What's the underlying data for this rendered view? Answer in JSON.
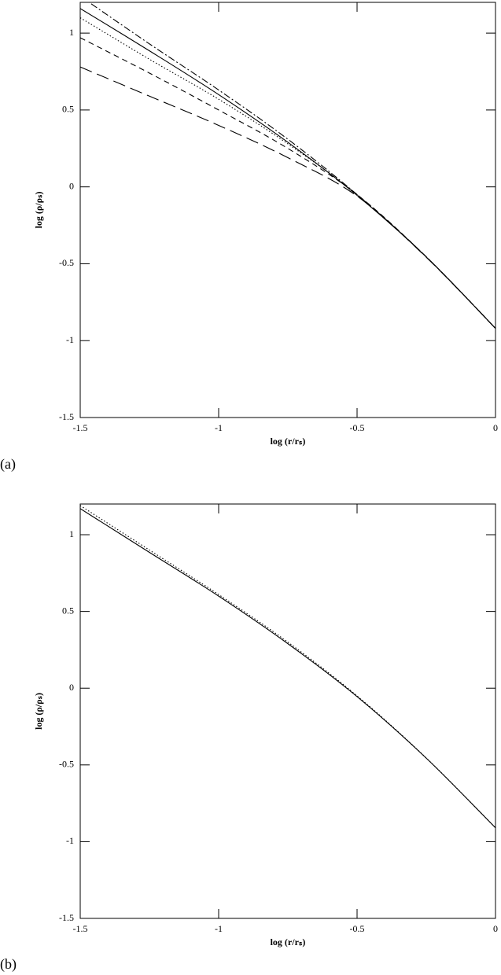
{
  "chart_data": [
    {
      "type": "line",
      "panel_label": "(a)",
      "x_label": "log (r/rₛ)",
      "y_label": "log (ρ/ρₛ)",
      "x": [
        -1.5,
        -1.25,
        -1,
        -0.75,
        -0.5,
        -0.25,
        0
      ],
      "xlim": [
        -1.5,
        0
      ],
      "ylim": [
        -1.5,
        1.2
      ],
      "xticks": [
        -1.5,
        -1,
        -0.5,
        0
      ],
      "yticks": [
        -1.5,
        -1,
        -0.5,
        0,
        0.5,
        1
      ],
      "series": [
        {
          "color": "#000000",
          "dash": "solid",
          "values": [
            1.16,
            0.885,
            0.6,
            0.29,
            -0.055,
            -0.456,
            -0.92
          ]
        },
        {
          "color": "#000000",
          "dash": "dotted",
          "values": [
            1.1,
            0.83,
            0.57,
            0.28,
            -0.05,
            -0.455,
            -0.92
          ]
        },
        {
          "color": "#000000",
          "dash": "short-dash",
          "values": [
            0.97,
            0.74,
            0.5,
            0.25,
            -0.05,
            -0.455,
            -0.92
          ]
        },
        {
          "color": "#000000",
          "dash": "long-dash",
          "values": [
            0.78,
            0.59,
            0.4,
            0.19,
            -0.06,
            -0.458,
            -0.92
          ]
        },
        {
          "color": "#000000",
          "dash": "dash-dot",
          "values": [
            1.24,
            0.93,
            0.63,
            0.31,
            -0.05,
            -0.455,
            -0.92
          ]
        }
      ]
    },
    {
      "type": "line",
      "panel_label": "(b)",
      "x_label": "log (r/rₛ)",
      "y_label": "log (ρ/ρₛ)",
      "x": [
        -1.5,
        -1.25,
        -1,
        -0.75,
        -0.5,
        -0.25,
        0
      ],
      "xlim": [
        -1.5,
        0
      ],
      "ylim": [
        -1.5,
        1.2
      ],
      "xticks": [
        -1.5,
        -1,
        -0.5,
        0
      ],
      "yticks": [
        -1.5,
        -1,
        -0.5,
        0,
        0.5,
        1
      ],
      "series": [
        {
          "color": "#000000",
          "dash": "solid",
          "values": [
            1.17,
            0.885,
            0.6,
            0.29,
            -0.055,
            -0.456,
            -0.91
          ]
        },
        {
          "color": "#000000",
          "dash": "dotted",
          "values": [
            1.19,
            0.9,
            0.61,
            0.3,
            -0.05,
            -0.455,
            -0.91
          ]
        }
      ]
    }
  ]
}
